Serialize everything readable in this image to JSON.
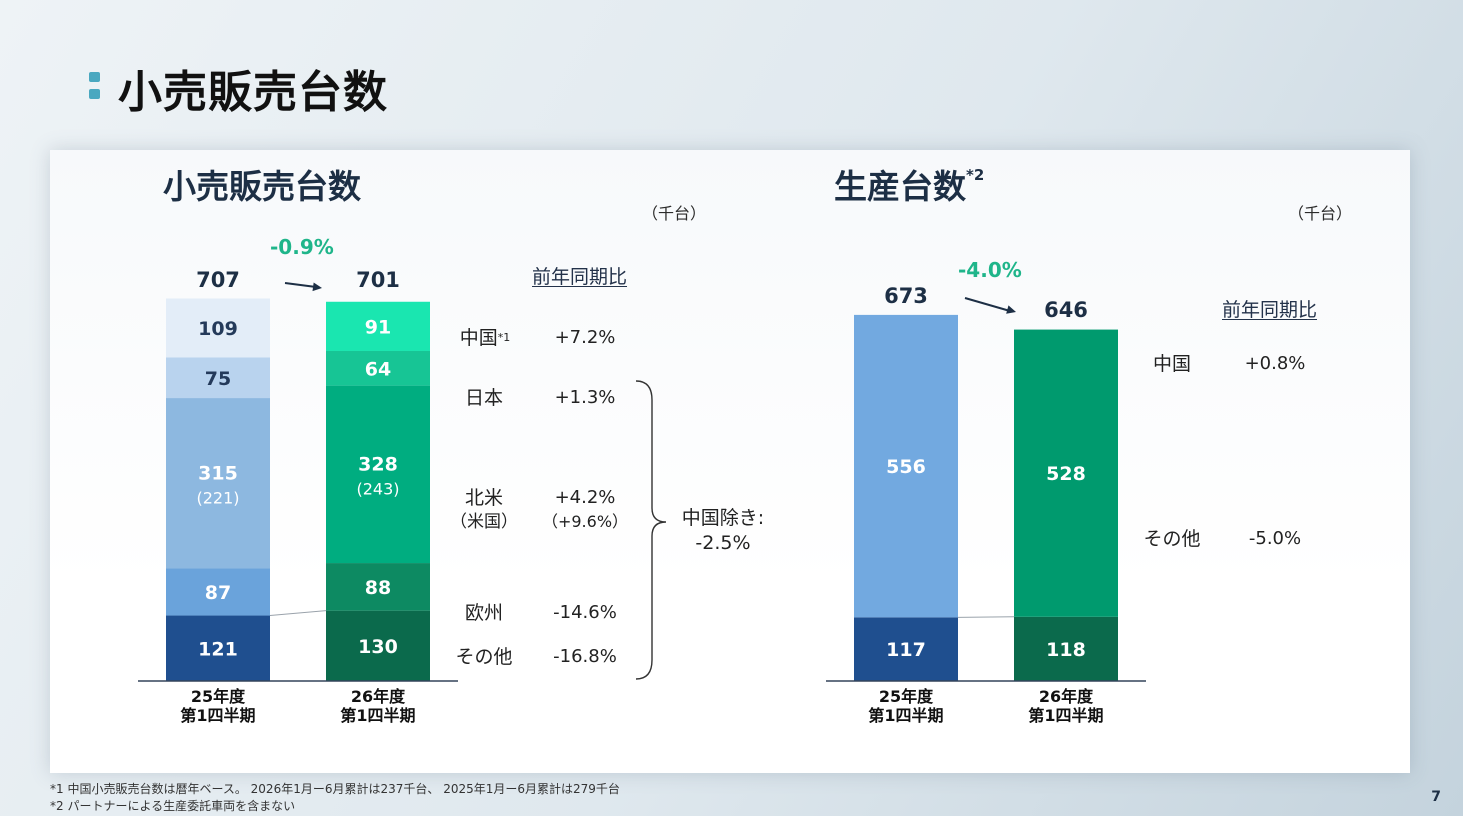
{
  "slide": {
    "title": "小売販売台数",
    "page_number": "7",
    "footnotes": [
      "*1 中国小売販売台数は暦年ベース。 2026年1月ー6月累計は237千台、 2025年1月ー6月累計は279千台",
      "*2 パートナーによる生産委託車両を含まない"
    ]
  },
  "retail": {
    "title": "小売販売台数",
    "unit": "（千台）",
    "yoy_header": "前年同期比",
    "growth": "-0.9%",
    "total_prev": "707",
    "total_curr": "701",
    "x_prev": [
      "25年度",
      "第1四半期"
    ],
    "x_curr": [
      "26年度",
      "第1四半期"
    ],
    "regions": [
      {
        "label": "中国",
        "sup": "*1",
        "yoy": "+7.2%"
      },
      {
        "label": "日本",
        "sup": "",
        "yoy": "+1.3%"
      },
      {
        "label": "北米",
        "sub": "（米国）",
        "yoy": "+4.2%",
        "yoy_sub": "（+9.6%）"
      },
      {
        "label": "欧州",
        "sup": "",
        "yoy": "-14.6%"
      },
      {
        "label": "その他",
        "sup": "",
        "yoy": "-16.8%"
      }
    ],
    "excl_china": [
      "中国除き:",
      "-2.5%"
    ]
  },
  "production": {
    "title": "生産台数",
    "title_sup": "*2",
    "unit": "（千台）",
    "yoy_header": "前年同期比",
    "growth": "-4.0%",
    "total_prev": "673",
    "total_curr": "646",
    "x_prev": [
      "25年度",
      "第1四半期"
    ],
    "x_curr": [
      "26年度",
      "第1四半期"
    ],
    "regions": [
      {
        "label": "中国",
        "yoy": "+0.8%"
      },
      {
        "label": "その他",
        "yoy": "-5.0%"
      }
    ]
  },
  "chart_data": [
    {
      "type": "bar",
      "stacked": true,
      "title": "小売販売台数",
      "unit": "（千台）",
      "categories": [
        "25年度 第1四半期",
        "26年度 第1四半期"
      ],
      "totals": [
        707,
        701
      ],
      "series": [
        {
          "name": "中国",
          "values": [
            121,
            130
          ],
          "colors": [
            "#1f4f8f",
            "#0b6a4c"
          ]
        },
        {
          "name": "日本",
          "values": [
            87,
            88
          ],
          "colors": [
            "#6aa3db",
            "#0d8a62"
          ]
        },
        {
          "name": "北米",
          "values": [
            315,
            328
          ],
          "sub_values": [
            "(221)",
            "(243)"
          ],
          "colors": [
            "#8db8e0",
            "#00ad80"
          ]
        },
        {
          "name": "欧州",
          "values": [
            75,
            64
          ],
          "colors": [
            "#b9d3ee",
            "#17c595"
          ]
        },
        {
          "name": "その他",
          "values": [
            109,
            91
          ],
          "colors": [
            "#e3edf8",
            "#1ae6b0"
          ]
        }
      ]
    },
    {
      "type": "bar",
      "stacked": true,
      "title": "生産台数",
      "unit": "（千台）",
      "categories": [
        "25年度 第1四半期",
        "26年度 第1四半期"
      ],
      "totals": [
        673,
        646
      ],
      "series": [
        {
          "name": "中国",
          "values": [
            117,
            118
          ],
          "colors": [
            "#1f4f8f",
            "#0b6a4c"
          ]
        },
        {
          "name": "その他",
          "values": [
            556,
            528
          ],
          "colors": [
            "#72a9e0",
            "#009a6e"
          ]
        }
      ]
    }
  ]
}
